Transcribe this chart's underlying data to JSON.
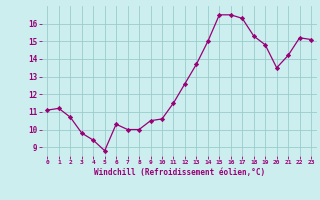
{
  "x": [
    0,
    1,
    2,
    3,
    4,
    5,
    6,
    7,
    8,
    9,
    10,
    11,
    12,
    13,
    14,
    15,
    16,
    17,
    18,
    19,
    20,
    21,
    22,
    23
  ],
  "y": [
    11.1,
    11.2,
    10.7,
    9.8,
    9.4,
    8.8,
    10.3,
    10.0,
    10.0,
    10.5,
    10.6,
    11.5,
    12.6,
    13.7,
    15.0,
    16.5,
    16.5,
    16.3,
    15.3,
    14.8,
    13.5,
    14.2,
    15.2,
    15.1
  ],
  "line_color": "#990077",
  "marker": "D",
  "marker_size": 2.2,
  "bg_color": "#cceeee",
  "grid_color": "#99cccc",
  "xlabel": "Windchill (Refroidissement éolien,°C)",
  "xlabel_color": "#990077",
  "tick_color": "#990077",
  "ylabel_ticks": [
    9,
    10,
    11,
    12,
    13,
    14,
    15,
    16
  ],
  "xlim": [
    -0.5,
    23.5
  ],
  "ylim": [
    8.5,
    17.0
  ],
  "xtick_labels": [
    "0",
    "1",
    "2",
    "3",
    "4",
    "5",
    "6",
    "7",
    "8",
    "9",
    "10",
    "11",
    "12",
    "13",
    "14",
    "15",
    "16",
    "17",
    "18",
    "19",
    "20",
    "21",
    "22",
    "23"
  ]
}
